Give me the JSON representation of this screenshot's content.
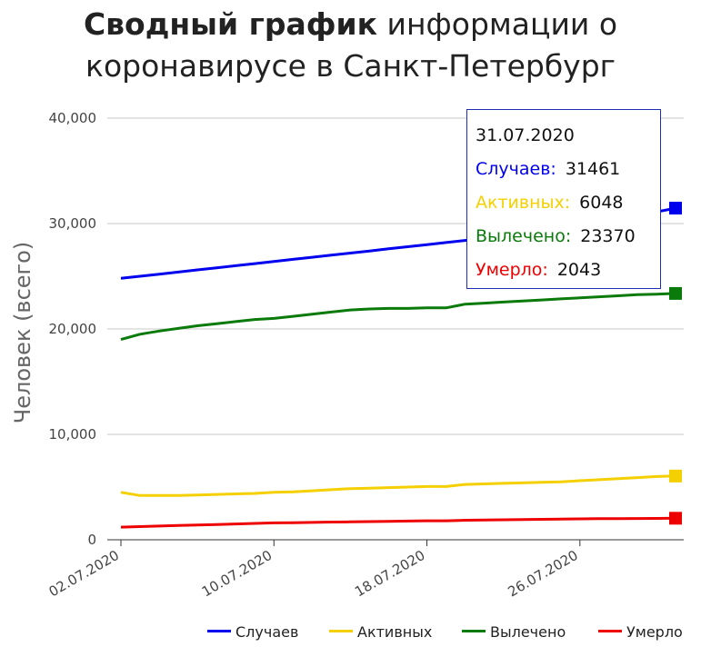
{
  "title": {
    "bold": "Сводный график",
    "rest_line1": "информации о",
    "line2": "коронавирусе в Санкт-Петербург"
  },
  "chart_data": {
    "type": "line",
    "ylabel": "Человек (всего)",
    "xlabel": "",
    "ylim": [
      0,
      40000
    ],
    "y_ticks": [
      "0",
      "10,000",
      "20,000",
      "30,000",
      "40,000"
    ],
    "y_tick_values": [
      0,
      10000,
      20000,
      30000,
      40000
    ],
    "x_start": "02.07.2020",
    "x_end": "31.07.2020",
    "x_ticks": [
      "02.07.2020",
      "10.07.2020",
      "18.07.2020",
      "26.07.2020"
    ],
    "grid": "horizontal",
    "legend_position": "bottom-right",
    "x": [
      "02.07.2020",
      "03.07.2020",
      "04.07.2020",
      "05.07.2020",
      "06.07.2020",
      "07.07.2020",
      "08.07.2020",
      "09.07.2020",
      "10.07.2020",
      "11.07.2020",
      "12.07.2020",
      "13.07.2020",
      "14.07.2020",
      "15.07.2020",
      "16.07.2020",
      "17.07.2020",
      "18.07.2020",
      "19.07.2020",
      "20.07.2020",
      "21.07.2020",
      "22.07.2020",
      "23.07.2020",
      "24.07.2020",
      "25.07.2020",
      "26.07.2020",
      "27.07.2020",
      "28.07.2020",
      "29.07.2020",
      "30.07.2020",
      "31.07.2020"
    ],
    "series": [
      {
        "name": "Случаев",
        "color": "#0000ee",
        "values": [
          24800,
          25000,
          25200,
          25400,
          25600,
          25800,
          26000,
          26200,
          26400,
          26600,
          26800,
          27000,
          27200,
          27400,
          27600,
          27800,
          28000,
          28200,
          28400,
          28600,
          28800,
          29000,
          29300,
          29500,
          29800,
          30100,
          30400,
          30700,
          31100,
          31461
        ]
      },
      {
        "name": "Активных",
        "color": "#f5d000",
        "values": [
          4500,
          4200,
          4200,
          4200,
          4250,
          4300,
          4350,
          4400,
          4500,
          4550,
          4650,
          4750,
          4850,
          4900,
          4950,
          5000,
          5050,
          5050,
          5250,
          5300,
          5350,
          5400,
          5450,
          5500,
          5600,
          5700,
          5800,
          5900,
          6000,
          6048
        ]
      },
      {
        "name": "Вылечено",
        "color": "#0a7a0a",
        "values": [
          19000,
          19500,
          19800,
          20050,
          20300,
          20500,
          20700,
          20900,
          21000,
          21200,
          21400,
          21600,
          21800,
          21900,
          21950,
          21950,
          22000,
          22000,
          22350,
          22450,
          22550,
          22650,
          22750,
          22850,
          22950,
          23050,
          23150,
          23250,
          23300,
          23370
        ]
      },
      {
        "name": "Умерло",
        "color": "#ee0000",
        "values": [
          1200,
          1250,
          1300,
          1350,
          1400,
          1450,
          1500,
          1550,
          1600,
          1620,
          1650,
          1680,
          1700,
          1720,
          1750,
          1780,
          1800,
          1800,
          1850,
          1870,
          1900,
          1920,
          1940,
          1960,
          1980,
          2000,
          2010,
          2020,
          2030,
          2043
        ]
      }
    ],
    "tooltip": {
      "date": "31.07.2020",
      "rows": [
        {
          "label": "Случаев:",
          "value": "31461",
          "color": "#0000ee"
        },
        {
          "label": "Активных:",
          "value": "6048",
          "color": "#f5d000"
        },
        {
          "label": "Вылечено:",
          "value": "23370",
          "color": "#0a7a0a"
        },
        {
          "label": "Умерло:",
          "value": "2043",
          "color": "#ee0000"
        }
      ]
    }
  }
}
